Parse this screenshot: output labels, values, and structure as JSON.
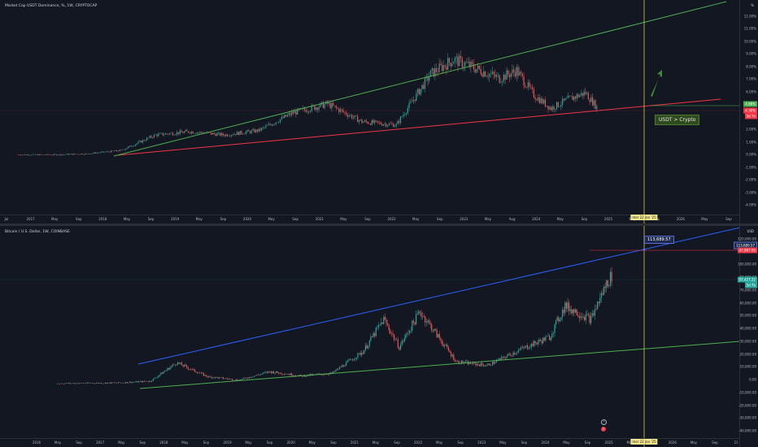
{
  "top": {
    "title": "Market Cap USDT Dominance, %, 1W, CRYPTOCAP",
    "corner": "%",
    "y_ticks": [
      "12.00%",
      "11.00%",
      "10.00%",
      "9.00%",
      "8.00%",
      "7.00%",
      "6.00%",
      "5.00%",
      "3.00%",
      "2.00%",
      "1.00%",
      "0.00%",
      "-1.00%",
      "-2.00%",
      "-3.00%",
      "-4.00%"
    ],
    "x_ticks": [
      "Jul",
      "2017",
      "May",
      "Sep",
      "2018",
      "May",
      "Sep",
      "2019",
      "May",
      "Sep",
      "2020",
      "May",
      "Sep",
      "2021",
      "May",
      "Sep",
      "2022",
      "May",
      "Sep",
      "2023",
      "May",
      "Aug",
      "2024",
      "May",
      "Sep",
      "2025",
      "May",
      "Sep",
      "2026",
      "May",
      "Sep"
    ],
    "price_tag_1": "4.88%",
    "price_tag_2": "4.30%",
    "price_tag_2b": "5d 7h",
    "date_tag": "mer 22 Jan '25",
    "note": "USDT > Crypto"
  },
  "bottom": {
    "title": "Bitcoin / U.S. Dollar, 1W, COINBASE",
    "corner": "USD",
    "y_ticks": [
      "120,000.00",
      "110,000.00",
      "100,000.00",
      "90,000.00",
      "70,000.00",
      "60,000.00",
      "50,000.00",
      "40,000.00",
      "30,000.00",
      "20,000.00",
      "10,000.00",
      "0.00",
      "-10,000.00",
      "-20,000.00",
      "-30,000.00",
      "-40,000.00"
    ],
    "x_ticks": [
      "2016",
      "May",
      "Sep",
      "2017",
      "May",
      "Sep",
      "2018",
      "May",
      "Sep",
      "2019",
      "May",
      "Sep",
      "2020",
      "May",
      "Sep",
      "2021",
      "May",
      "Sep",
      "2022",
      "May",
      "Sep",
      "2023",
      "May",
      "Sep",
      "2024",
      "May",
      "Sep",
      "2025",
      "May",
      "Sep",
      "2026",
      "May",
      "Sep",
      "21"
    ],
    "tip_label": "113,689.57",
    "price_tag_1": "113,689.57",
    "price_tag_2": "87,987.00",
    "price_tag_3": "97,427.32",
    "price_tag_3b": "5d 7h",
    "date_tag": "mer 22 Jan '25",
    "marker_1": "f",
    "marker_2": "E"
  },
  "chart_data": [
    {
      "type": "line",
      "title": "Market Cap USDT Dominance, %, 1W, CRYPTOCAP",
      "x": [
        "2016-07",
        "2017-01",
        "2017-07",
        "2018-01",
        "2018-07",
        "2019-01",
        "2019-07",
        "2020-01",
        "2020-07",
        "2021-01",
        "2021-07",
        "2022-01",
        "2022-07",
        "2022-11",
        "2023-01",
        "2023-07",
        "2023-10",
        "2024-01",
        "2024-04",
        "2024-07",
        "2024-10",
        "2024-12"
      ],
      "series": [
        {
          "values": [
            0.02,
            0.01,
            0.1,
            0.4,
            1.8,
            2.1,
            1.8,
            2.2,
            3.8,
            4.6,
            3.0,
            2.7,
            7.3,
            8.6,
            8.2,
            6.9,
            7.6,
            5.4,
            4.2,
            5.0,
            5.6,
            4.3
          ]
        }
      ],
      "ylim": [
        -4.5,
        12.5
      ],
      "colors": {
        "up": "#26a69a",
        "down": "#ef5350",
        "upper_trend": "#4caf50",
        "lower_trend": "#f23645"
      }
    },
    {
      "type": "line",
      "title": "Bitcoin / U.S. Dollar, 1W, COINBASE",
      "x": [
        "2016-01",
        "2016-07",
        "2017-01",
        "2017-07",
        "2017-12",
        "2018-06",
        "2018-12",
        "2019-06",
        "2019-12",
        "2020-06",
        "2020-12",
        "2021-04",
        "2021-07",
        "2021-11",
        "2022-06",
        "2022-12",
        "2023-06",
        "2023-12",
        "2024-03",
        "2024-08",
        "2024-11",
        "2024-12"
      ],
      "series": [
        {
          "values": [
            400,
            650,
            1000,
            2500,
            19000,
            6500,
            3500,
            11000,
            7200,
            9500,
            29000,
            58000,
            33000,
            65000,
            20000,
            16500,
            30000,
            42000,
            70000,
            58000,
            90000,
            97427
          ]
        }
      ],
      "ylim": [
        -42000,
        130000
      ],
      "colors": {
        "up": "#26a69a",
        "down": "#ef5350",
        "upper_trend": "#2962ff",
        "lower_trend": "#4caf50"
      }
    }
  ]
}
